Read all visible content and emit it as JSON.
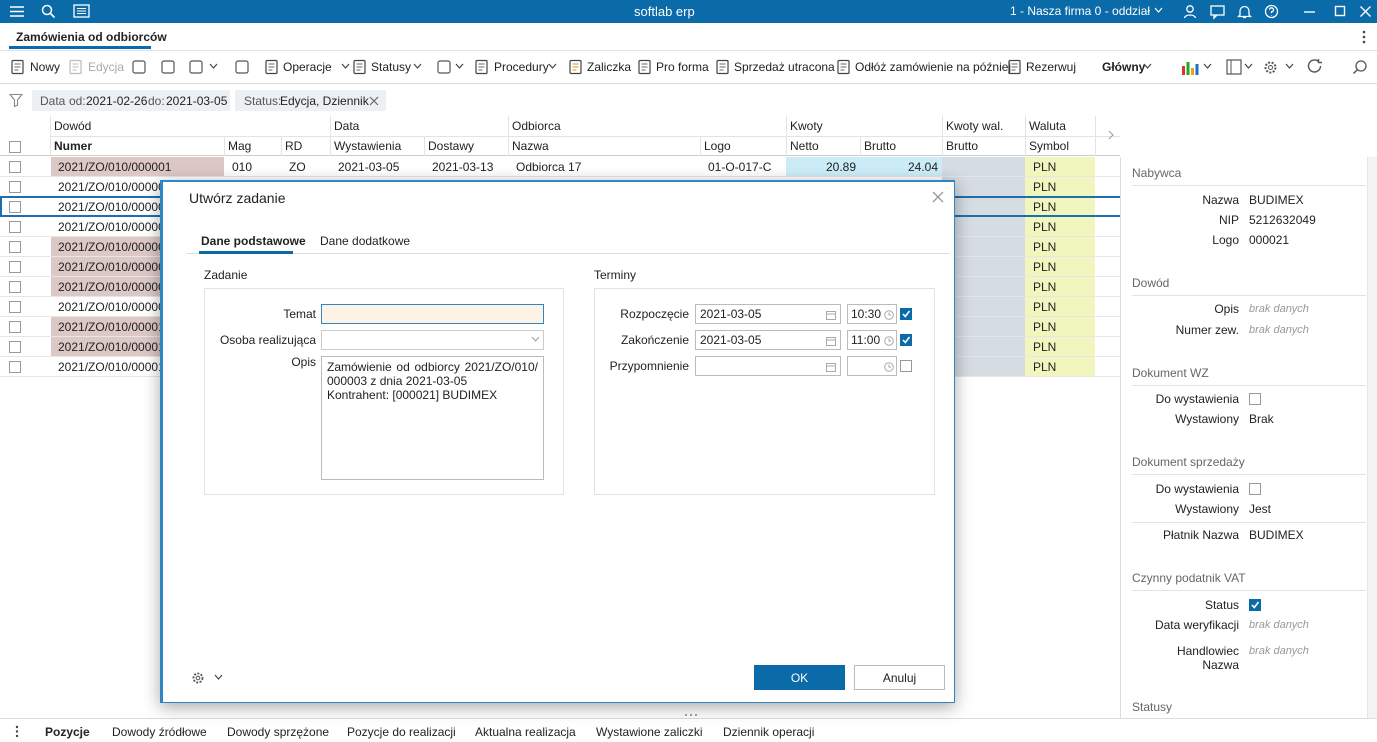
{
  "app": {
    "title": "softlab erp",
    "company": "1 - Nasza firma 0 - oddział"
  },
  "tab": "Zamówienia od odbiorców",
  "toolbar": [
    "Nowy",
    "Edycja",
    "Operacje",
    "Statusy",
    "Procedury",
    "Zaliczka",
    "Pro forma",
    "Sprzedaż utracona",
    "Odłóż zamówienie na później",
    "Rezerwuj",
    "Główny"
  ],
  "filters": [
    {
      "field": "Data",
      "from_label": "od:",
      "from": "2021-02-26",
      "to_label": "do:",
      "to": "2021-03-05"
    },
    {
      "field": "Status:",
      "value": "Edycja, Dziennik"
    }
  ],
  "table": {
    "groups": [
      "Dowód",
      "Data",
      "Odbiorca",
      "Kwoty",
      "Kwoty wal.",
      "Waluta"
    ],
    "columns": [
      "Numer",
      "Mag",
      "RD",
      "Wystawienia",
      "Dostawy",
      "Nazwa",
      "Logo",
      "Netto",
      "Brutto",
      "Brutto",
      "Symbol"
    ],
    "rows": [
      {
        "numer": "2021/ZO/010/000001",
        "mag": "010",
        "rd": "ZO",
        "wystawienia": "2021-03-05",
        "dostawy": "2021-03-13",
        "nazwa": "Odbiorca 17",
        "logo": "01-O-017-C",
        "netto": 20.89,
        "brutto": 24.04,
        "symbol": "PLN"
      },
      {
        "numer": "2021/ZO/010/00000",
        "symbol": "PLN"
      },
      {
        "numer": "2021/ZO/010/00000",
        "symbol": "PLN"
      },
      {
        "numer": "2021/ZO/010/00000",
        "symbol": "PLN"
      },
      {
        "numer": "2021/ZO/010/00000",
        "symbol": "PLN"
      },
      {
        "numer": "2021/ZO/010/00000",
        "symbol": "PLN"
      },
      {
        "numer": "2021/ZO/010/00000",
        "symbol": "PLN"
      },
      {
        "numer": "2021/ZO/010/00000",
        "symbol": "PLN"
      },
      {
        "numer": "2021/ZO/010/00001",
        "symbol": "PLN"
      },
      {
        "numer": "2021/ZO/010/00001",
        "symbol": "PLN"
      },
      {
        "numer": "2021/ZO/010/00001",
        "symbol": "PLN"
      }
    ]
  },
  "panel": [
    {
      "title": "Nabywca",
      "fields": [
        {
          "label": "Nazwa",
          "value": "BUDIMEX"
        },
        {
          "label": "NIP",
          "value": "5212632049"
        },
        {
          "label": "Logo",
          "value": "000021"
        }
      ]
    },
    {
      "title": "Dowód",
      "fields": [
        {
          "label": "Opis",
          "value": "brak danych"
        },
        {
          "label": "Numer zew.",
          "value": "brak danych"
        }
      ]
    },
    {
      "title": "Dokument WZ",
      "fields": [
        {
          "label": "Do wystawienia",
          "checked": false
        },
        {
          "label": "Wystawiony",
          "value": "Brak"
        }
      ]
    },
    {
      "title": "Dokument sprzedaży",
      "fields": [
        {
          "label": "Do wystawienia",
          "checked": false
        },
        {
          "label": "Wystawiony",
          "value": "Jest"
        },
        {
          "label": "Płatnik Nazwa",
          "value": "BUDIMEX"
        }
      ]
    },
    {
      "title": "Czynny podatnik VAT",
      "fields": [
        {
          "label": "Status",
          "checked": true
        },
        {
          "label": "Data weryfikacji",
          "value": "brak danych"
        },
        {
          "label": "Handlowiec\nNazwa",
          "value": "brak danych"
        }
      ]
    },
    {
      "title": "Statusy",
      "fields": []
    }
  ],
  "dialog": {
    "title": "Utwórz zadanie",
    "tabs": [
      "Dane podstawowe",
      "Dane dodatkowe"
    ],
    "task": {
      "title": "Zadanie",
      "subject_label": "Temat",
      "person_label": "Osoba realizująca",
      "description_label": "Opis",
      "description": "Zamówienie od odbiorcy 2021/ZO/010/000003 z dnia 2021-03-05\nKontrahent: [000021] BUDIMEX"
    },
    "terms": {
      "title": "Terminy",
      "rows": [
        {
          "label": "Rozpoczęcie",
          "date": "2021-03-05",
          "time": "10:30",
          "checked": true
        },
        {
          "label": "Zakończenie",
          "date": "2021-03-05",
          "time": "11:00",
          "checked": true
        },
        {
          "label": "Przypomnienie",
          "checked": false
        }
      ]
    },
    "ok": "OK",
    "cancel": "Anuluj"
  },
  "bottom_tabs": [
    "Pozycje",
    "Dowody źródłowe",
    "Dowody sprzężone",
    "Pozycje do realizacji",
    "Aktualna realizacja",
    "Wystawione zaliczki",
    "Dziennik operacji"
  ]
}
